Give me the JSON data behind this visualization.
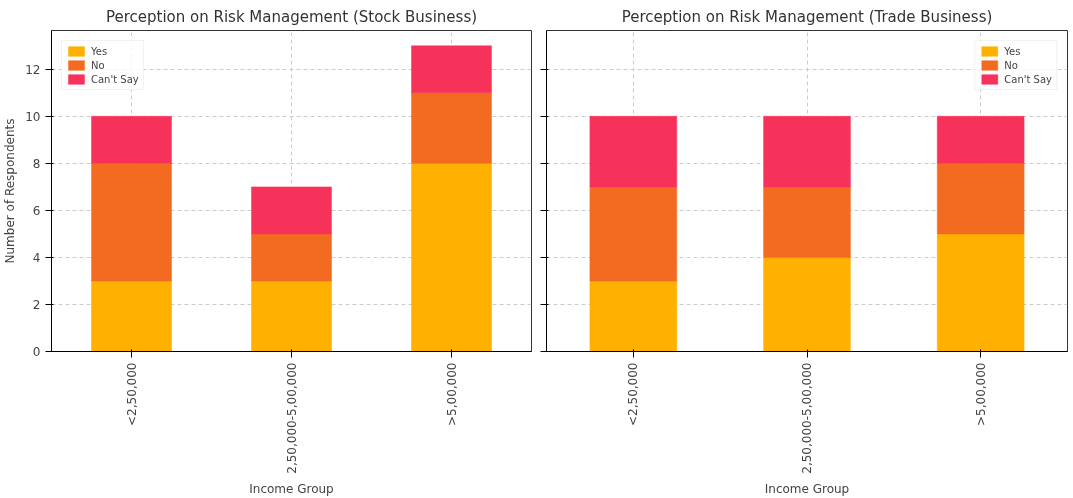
{
  "chart_data": [
    {
      "type": "bar",
      "title": "Perception on Risk Management (Stock Business)",
      "xlabel": "Income Group",
      "ylabel": "Number of Respondents",
      "categories": [
        "<2,50,000",
        "2,50,000-5,00,000",
        ">5,00,000"
      ],
      "stacked": true,
      "series": [
        {
          "name": "Yes",
          "color": "#ffb000",
          "values": [
            3,
            3,
            8
          ]
        },
        {
          "name": "No",
          "color": "#f26b21",
          "values": [
            5,
            2,
            3
          ]
        },
        {
          "name": "Can't Say",
          "color": "#f7325a",
          "values": [
            2,
            2,
            2
          ]
        }
      ],
      "ylim": [
        0,
        13.65
      ],
      "yticks": [
        0,
        2,
        4,
        6,
        8,
        10,
        12
      ],
      "grid": true,
      "legend": "top left"
    },
    {
      "type": "bar",
      "title": "Perception on Risk Management (Trade Business)",
      "xlabel": "Income Group",
      "categories": [
        "<2,50,000",
        "2,50,000-5,00,000",
        ">5,00,000"
      ],
      "stacked": true,
      "series": [
        {
          "name": "Yes",
          "color": "#ffb000",
          "values": [
            3,
            4,
            5
          ]
        },
        {
          "name": "No",
          "color": "#f26b21",
          "values": [
            4,
            3,
            3
          ]
        },
        {
          "name": "Can't Say",
          "color": "#f7325a",
          "values": [
            3,
            3,
            2
          ]
        }
      ],
      "ylim": [
        0,
        13.65
      ],
      "yticks": [
        0,
        2,
        4,
        6,
        8,
        10,
        12
      ],
      "grid": true,
      "legend": "top right",
      "tick_labels": "x"
    }
  ]
}
